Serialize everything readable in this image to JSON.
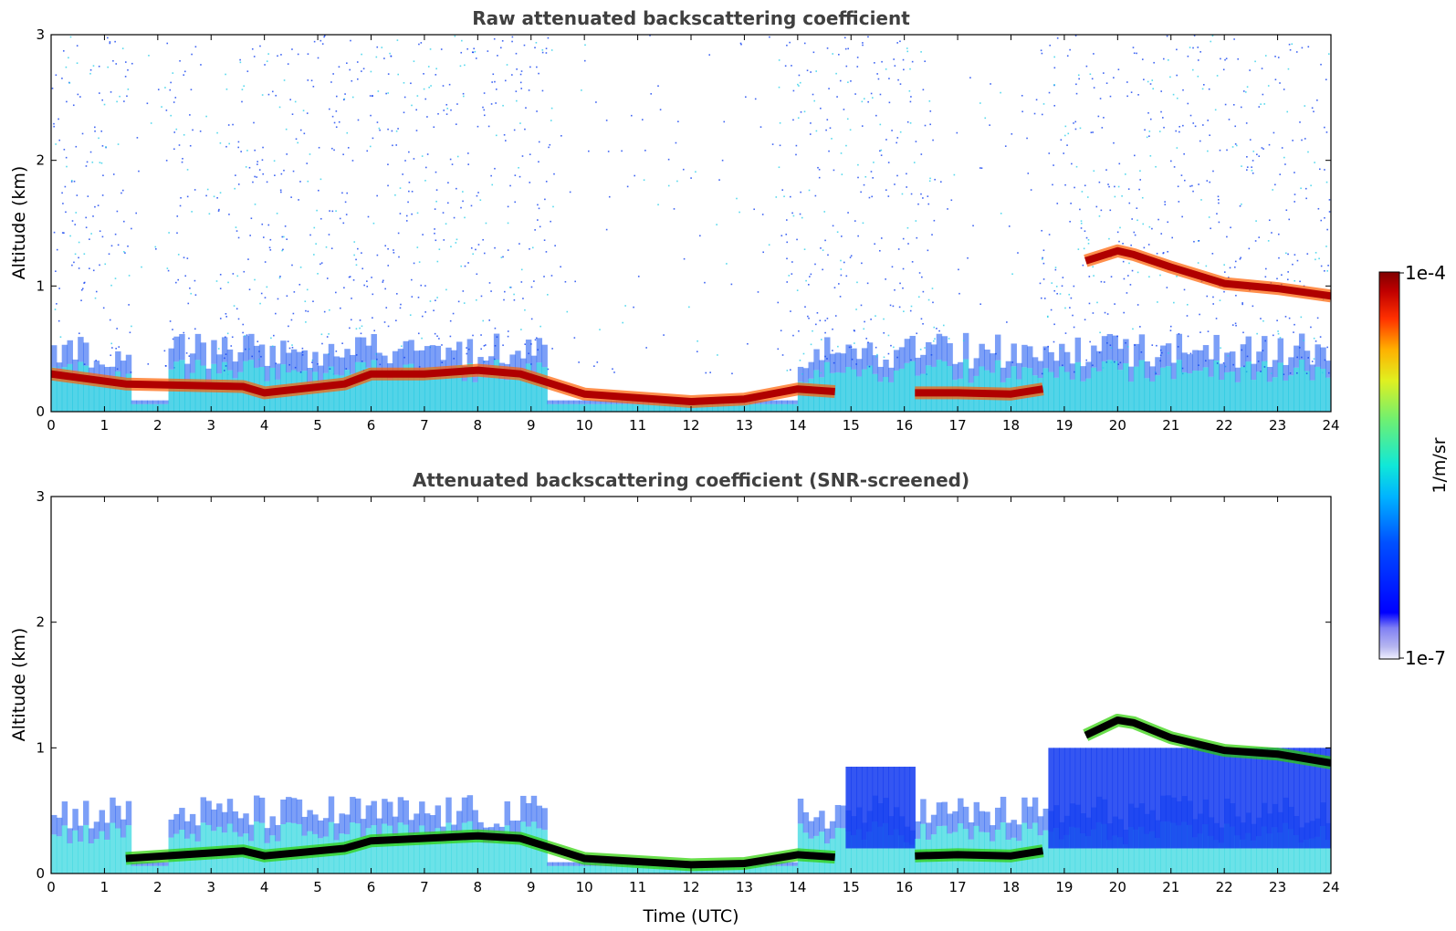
{
  "chart_data": [
    {
      "type": "heatmap",
      "title": "Raw attenuated backscattering coefficient",
      "xlabel": "",
      "ylabel": "Altitude (km)",
      "xlim": [
        0,
        24
      ],
      "ylim": [
        0,
        3
      ],
      "xticks": [
        0,
        1,
        2,
        3,
        4,
        5,
        6,
        7,
        8,
        9,
        10,
        11,
        12,
        13,
        14,
        15,
        16,
        17,
        18,
        19,
        20,
        21,
        22,
        23,
        24
      ],
      "yticks": [
        0,
        1,
        2,
        3
      ],
      "layers": [
        {
          "name": "",
          "x": [
            0,
            1.4,
            3.6,
            4.0,
            5.5,
            6.0,
            7.0,
            8.0,
            8.8,
            10,
            12,
            13,
            14,
            14.7
          ],
          "y": [
            0.3,
            0.22,
            0.2,
            0.15,
            0.22,
            0.3,
            0.3,
            0.33,
            0.3,
            0.14,
            0.08,
            0.1,
            0.18,
            0.16
          ],
          "value": "1e-4"
        },
        {
          "name": "",
          "x": [
            16.2,
            17,
            18,
            18.6
          ],
          "y": [
            0.15,
            0.15,
            0.14,
            0.18
          ],
          "value": "1e-4"
        },
        {
          "name": "",
          "x": [
            19.4,
            20.0,
            20.3,
            21,
            22,
            23,
            24
          ],
          "y": [
            1.2,
            1.28,
            1.25,
            1.15,
            1.02,
            0.98,
            0.92
          ],
          "value": "1e-4"
        }
      ]
    },
    {
      "type": "heatmap",
      "title": "Attenuated backscattering coefficient (SNR-screened)",
      "xlabel": "Time (UTC)",
      "ylabel": "Altitude (km)",
      "xlim": [
        0,
        24
      ],
      "ylim": [
        0,
        3
      ],
      "xticks": [
        0,
        1,
        2,
        3,
        4,
        5,
        6,
        7,
        8,
        9,
        10,
        11,
        12,
        13,
        14,
        15,
        16,
        17,
        18,
        19,
        20,
        21,
        22,
        23,
        24
      ],
      "yticks": [
        0,
        1,
        2,
        3
      ],
      "layers": [
        {
          "name": "",
          "x": [
            1.4,
            3.6,
            4.0,
            5.5,
            6.0,
            7.0,
            8.0,
            8.8,
            10,
            12,
            13,
            14,
            14.7
          ],
          "y": [
            0.12,
            0.18,
            0.14,
            0.2,
            0.26,
            0.28,
            0.3,
            0.28,
            0.12,
            0.07,
            0.08,
            0.15,
            0.13
          ],
          "value": "saturated"
        },
        {
          "name": "",
          "x": [
            16.2,
            17,
            18,
            18.6
          ],
          "y": [
            0.14,
            0.15,
            0.14,
            0.18
          ],
          "value": "saturated"
        },
        {
          "name": "",
          "x": [
            19.4,
            20.0,
            20.3,
            21,
            22,
            23,
            24
          ],
          "y": [
            1.1,
            1.22,
            1.2,
            1.08,
            0.98,
            0.95,
            0.88
          ],
          "value": "saturated"
        }
      ]
    }
  ],
  "colorbar": {
    "label": "1/m/sr",
    "max_label": "1e-4",
    "min_label": "1e-7",
    "scale": "log",
    "colormap": "jet"
  }
}
